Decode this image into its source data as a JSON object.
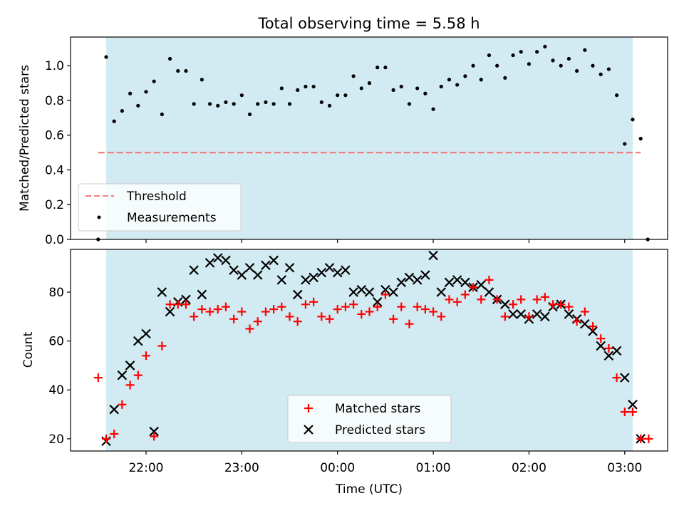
{
  "chart_data": [
    {
      "type": "scatter",
      "title": "Total observing time = 5.58 h",
      "xlabel": "",
      "ylabel": "Matched/Predicted stars",
      "ylim": [
        0,
        1.165
      ],
      "yticks": [
        "0.0",
        "0.2",
        "0.4",
        "0.6",
        "0.8",
        "1.0"
      ],
      "ytick_values": [
        0,
        0.2,
        0.4,
        0.6,
        0.8,
        1.0
      ],
      "legend": {
        "placement": "lower-left",
        "entries": [
          "Threshold",
          "Measurements"
        ]
      },
      "threshold": {
        "name": "Threshold",
        "value": 0.5,
        "color": "#f08080"
      },
      "shaded_span": {
        "x_start": "21:35",
        "x_end": "03:05",
        "color": "#add8e6"
      },
      "series": [
        {
          "name": "Measurements",
          "color": "#000000",
          "x": [
            "21:30",
            "21:35",
            "21:40",
            "21:45",
            "21:50",
            "21:55",
            "22:00",
            "22:05",
            "22:10",
            "22:15",
            "22:20",
            "22:25",
            "22:30",
            "22:35",
            "22:40",
            "22:45",
            "22:50",
            "22:55",
            "23:00",
            "23:05",
            "23:10",
            "23:15",
            "23:20",
            "23:25",
            "23:30",
            "23:35",
            "23:40",
            "23:45",
            "23:50",
            "23:55",
            "00:00",
            "00:05",
            "00:10",
            "00:15",
            "00:20",
            "00:25",
            "00:30",
            "00:35",
            "00:40",
            "00:45",
            "00:50",
            "00:55",
            "01:00",
            "01:05",
            "01:10",
            "01:15",
            "01:20",
            "01:25",
            "01:30",
            "01:35",
            "01:40",
            "01:45",
            "01:50",
            "01:55",
            "02:00",
            "02:05",
            "02:10",
            "02:15",
            "02:20",
            "02:25",
            "02:30",
            "02:35",
            "02:40",
            "02:45",
            "02:50",
            "02:55",
            "03:00",
            "03:05",
            "03:10"
          ],
          "values": [
            0.0,
            1.05,
            0.68,
            0.74,
            0.84,
            0.77,
            0.85,
            0.91,
            0.72,
            1.04,
            0.97,
            0.97,
            0.78,
            0.92,
            0.78,
            0.77,
            0.79,
            0.78,
            0.83,
            0.72,
            0.78,
            0.79,
            0.78,
            0.87,
            0.78,
            0.86,
            0.88,
            0.88,
            0.79,
            0.77,
            0.83,
            0.83,
            0.94,
            0.87,
            0.9,
            0.99,
            0.99,
            0.86,
            0.88,
            0.78,
            0.87,
            0.84,
            0.75,
            0.88,
            0.92,
            0.89,
            0.94,
            1.0,
            0.92,
            1.06,
            1.0,
            0.93,
            1.06,
            1.08,
            1.01,
            1.08,
            1.11,
            1.03,
            1.0,
            1.04,
            0.97,
            1.09,
            1.0,
            0.95,
            0.98,
            0.83,
            0.55,
            0.69,
            0.58
          ]
        }
      ],
      "outlier_point": {
        "x": "03:10",
        "y": 0.0
      }
    },
    {
      "type": "scatter",
      "title": "",
      "xlabel": "Time (UTC)",
      "ylabel": "Count",
      "ylim": [
        15,
        97.5
      ],
      "yticks": [
        "20",
        "40",
        "60",
        "80"
      ],
      "ytick_values": [
        20,
        40,
        60,
        80
      ],
      "xticks": [
        "22:00",
        "23:00",
        "00:00",
        "01:00",
        "02:00",
        "03:00"
      ],
      "legend": {
        "placement": "lower-center",
        "entries": [
          "Matched stars",
          "Predicted stars"
        ]
      },
      "shaded_span": {
        "x_start": "21:35",
        "x_end": "03:05",
        "color": "#add8e6"
      },
      "series": [
        {
          "name": "Matched stars",
          "marker": "plus",
          "color": "#ff0000",
          "x": [
            "21:30",
            "21:35",
            "21:40",
            "21:45",
            "21:50",
            "21:55",
            "22:00",
            "22:05",
            "22:10",
            "22:15",
            "22:20",
            "22:25",
            "22:30",
            "22:35",
            "22:40",
            "22:45",
            "22:50",
            "22:55",
            "23:00",
            "23:05",
            "23:10",
            "23:15",
            "23:20",
            "23:25",
            "23:30",
            "23:35",
            "23:40",
            "23:45",
            "23:50",
            "23:55",
            "00:00",
            "00:05",
            "00:10",
            "00:15",
            "00:20",
            "00:25",
            "00:30",
            "00:35",
            "00:40",
            "00:45",
            "00:50",
            "00:55",
            "01:00",
            "01:05",
            "01:10",
            "01:15",
            "01:20",
            "01:25",
            "01:30",
            "01:35",
            "01:40",
            "01:45",
            "01:50",
            "01:55",
            "02:00",
            "02:05",
            "02:10",
            "02:15",
            "02:20",
            "02:25",
            "02:30",
            "02:35",
            "02:40",
            "02:45",
            "02:50",
            "02:55",
            "03:00",
            "03:05",
            "03:10",
            "03:15"
          ],
          "values": [
            45,
            20,
            22,
            34,
            42,
            46,
            54,
            21,
            58,
            75,
            75,
            75,
            70,
            73,
            72,
            73,
            74,
            69,
            72,
            65,
            68,
            72,
            73,
            74,
            70,
            68,
            75,
            76,
            70,
            69,
            73,
            74,
            75,
            71,
            72,
            74,
            79,
            69,
            74,
            67,
            74,
            73,
            72,
            70,
            77,
            76,
            79,
            82,
            77,
            85,
            77,
            70,
            75,
            77,
            70,
            77,
            78,
            75,
            75,
            74,
            68,
            72,
            66,
            61,
            57,
            45,
            31,
            31,
            20,
            20
          ]
        },
        {
          "name": "Predicted stars",
          "marker": "x",
          "color": "#000000",
          "x": [
            "21:35",
            "21:40",
            "21:45",
            "21:50",
            "21:55",
            "22:00",
            "22:05",
            "22:10",
            "22:15",
            "22:20",
            "22:25",
            "22:30",
            "22:35",
            "22:40",
            "22:45",
            "22:50",
            "22:55",
            "23:00",
            "23:05",
            "23:10",
            "23:15",
            "23:20",
            "23:25",
            "23:30",
            "23:35",
            "23:40",
            "23:45",
            "23:50",
            "23:55",
            "00:00",
            "00:05",
            "00:10",
            "00:15",
            "00:20",
            "00:25",
            "00:30",
            "00:35",
            "00:40",
            "00:45",
            "00:50",
            "00:55",
            "01:00",
            "01:05",
            "01:10",
            "01:15",
            "01:20",
            "01:25",
            "01:30",
            "01:35",
            "01:40",
            "01:45",
            "01:50",
            "01:55",
            "02:00",
            "02:05",
            "02:10",
            "02:15",
            "02:20",
            "02:25",
            "02:30",
            "02:35",
            "02:40",
            "02:45",
            "02:50",
            "02:55",
            "03:00",
            "03:05",
            "03:10"
          ],
          "values": [
            19,
            32,
            46,
            50,
            60,
            63,
            23,
            80,
            72,
            76,
            77,
            89,
            79,
            92,
            94,
            93,
            89,
            87,
            90,
            87,
            91,
            93,
            85,
            90,
            79,
            85,
            86,
            88,
            90,
            88,
            89,
            80,
            81,
            80,
            76,
            81,
            80,
            84,
            86,
            85,
            87,
            95,
            80,
            84,
            85,
            84,
            82,
            83,
            80,
            77,
            75,
            71,
            71,
            69,
            71,
            70,
            74,
            75,
            71,
            69,
            67,
            64,
            58,
            54,
            56,
            45,
            34,
            20
          ]
        }
      ]
    }
  ]
}
